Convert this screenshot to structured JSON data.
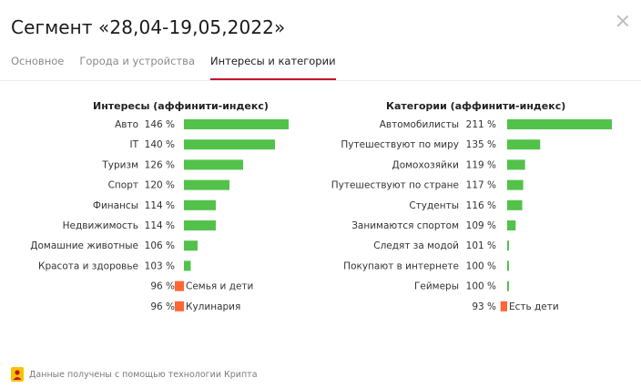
{
  "header": {
    "title": "Сегмент «28,04-19,05,2022»"
  },
  "tabs": [
    {
      "label": "Основное",
      "active": false
    },
    {
      "label": "Города и устройства",
      "active": false
    },
    {
      "label": "Интересы и категории",
      "active": true
    }
  ],
  "colors": {
    "positive_bar": "#52c24a",
    "negative_bar": "#ff6633",
    "active_tab_underline": "#c8102e"
  },
  "chart_data": [
    {
      "type": "bar",
      "title": "Интересы (аффинити-индекс)",
      "baseline": 100,
      "unit": "%",
      "categories": [
        "Авто",
        "IT",
        "Туризм",
        "Спорт",
        "Финансы",
        "Недвижимость",
        "Домашние животные",
        "Красота и здоровье",
        "Семья и дети",
        "Кулинария"
      ],
      "values": [
        146,
        140,
        126,
        120,
        114,
        114,
        106,
        103,
        96,
        96
      ],
      "value_labels": [
        "146 %",
        "140 %",
        "126 %",
        "120 %",
        "114 %",
        "114 %",
        "106 %",
        "103 %",
        "96 %",
        "96 %"
      ]
    },
    {
      "type": "bar",
      "title": "Категории (аффинити-индекс)",
      "baseline": 100,
      "unit": "%",
      "categories": [
        "Автомобилисты",
        "Путешествуют по миру",
        "Домохозяйки",
        "Путешествуют по стране",
        "Студенты",
        "Занимаются спортом",
        "Следят за модой",
        "Покупают в интернете",
        "Геймеры",
        "Есть дети"
      ],
      "values": [
        211,
        135,
        119,
        117,
        116,
        109,
        101,
        100,
        100,
        93
      ],
      "value_labels": [
        "211 %",
        "135 %",
        "119 %",
        "117 %",
        "116 %",
        "109 %",
        "101 %",
        "100 %",
        "100 %",
        "93 %"
      ]
    }
  ],
  "footer": {
    "text": "Данные получены с помощью технологии Крипта",
    "icon": "krypta-icon"
  }
}
